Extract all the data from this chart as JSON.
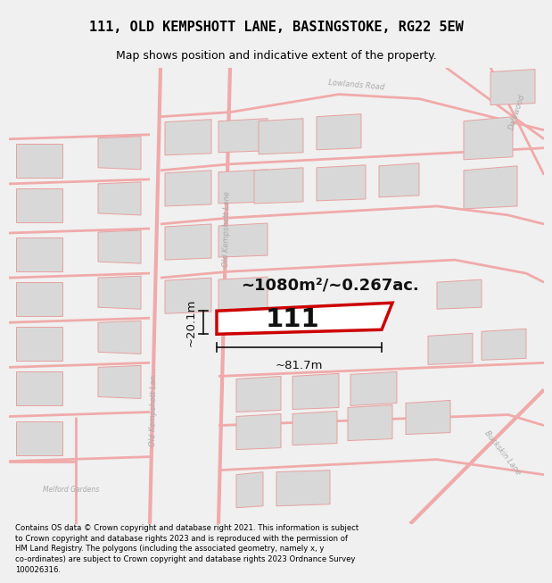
{
  "title": "111, OLD KEMPSHOTT LANE, BASINGSTOKE, RG22 5EW",
  "subtitle": "Map shows position and indicative extent of the property.",
  "footer_line1": "Contains OS data © Crown copyright and database right 2021. This information is subject",
  "footer_line2": "to Crown copyright and database rights 2023 and is reproduced with the permission of",
  "footer_line3": "HM Land Registry. The polygons (including the associated geometry, namely x, y",
  "footer_line4": "co-ordinates) are subject to Crown copyright and database rights 2023 Ordnance Survey",
  "footer_line5": "100026316.",
  "bg_color": "#f0f0f0",
  "map_bg": "#ffffff",
  "area_label": "~1080m²/~0.267ac.",
  "width_label": "~81.7m",
  "height_label": "~20.1m",
  "plot_number": "111",
  "road_color": "#f0aaaa",
  "building_color": "#d8d8d8",
  "building_stroke": "#e8a0a0",
  "highlight_color": "#cc0000",
  "annotation_color": "#111111",
  "road_label_color": "#aaaaaa",
  "title_fontsize": 11,
  "subtitle_fontsize": 9,
  "footer_fontsize": 6.1
}
